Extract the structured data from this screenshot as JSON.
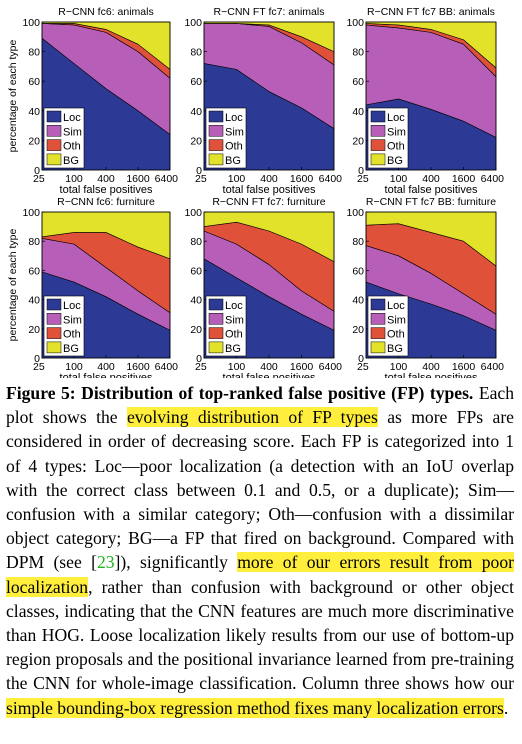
{
  "figure": {
    "ylabel": "percentage of each type",
    "xlabel": "total false positives",
    "x_ticks": [
      "25",
      "100",
      "400",
      "1600",
      "6400"
    ],
    "y_ticks": [
      "0",
      "20",
      "40",
      "60",
      "80",
      "100"
    ],
    "legend": [
      "Loc",
      "Sim",
      "Oth",
      "BG"
    ],
    "colors": {
      "Loc": "#2c3a96",
      "Sim": "#b75fb8",
      "Oth": "#e0513a",
      "BG": "#e2e22a"
    }
  },
  "chart_data": [
    {
      "type": "area",
      "title": "R−CNN fc6: animals",
      "xlabel": "total false positives",
      "ylabel": "percentage of each type",
      "x": [
        25,
        100,
        400,
        1600,
        6400
      ],
      "xscale": "log",
      "ylim": [
        0,
        100
      ],
      "legend_position": "bottom-left",
      "series": [
        {
          "name": "Loc",
          "values": [
            89,
            72,
            55,
            40,
            24
          ]
        },
        {
          "name": "Sim",
          "values": [
            10,
            26,
            38,
            40,
            38
          ]
        },
        {
          "name": "Oth",
          "values": [
            0,
            1,
            2,
            5,
            6
          ]
        },
        {
          "name": "BG",
          "values": [
            1,
            1,
            5,
            15,
            32
          ]
        }
      ]
    },
    {
      "type": "area",
      "title": "R−CNN FT fc7: animals",
      "xlabel": "total false positives",
      "x": [
        25,
        100,
        400,
        1600,
        6400
      ],
      "xscale": "log",
      "ylim": [
        0,
        100
      ],
      "legend_position": "bottom-left",
      "series": [
        {
          "name": "Loc",
          "values": [
            72,
            68,
            53,
            42,
            28
          ]
        },
        {
          "name": "Sim",
          "values": [
            27,
            31,
            44,
            44,
            43
          ]
        },
        {
          "name": "Oth",
          "values": [
            0,
            0,
            1,
            4,
            9
          ]
        },
        {
          "name": "BG",
          "values": [
            1,
            1,
            2,
            10,
            20
          ]
        }
      ]
    },
    {
      "type": "area",
      "title": "R−CNN FT fc7 BB: animals",
      "xlabel": "total false positives",
      "x": [
        25,
        100,
        400,
        1600,
        6400
      ],
      "xscale": "log",
      "ylim": [
        0,
        100
      ],
      "legend_position": "bottom-left",
      "series": [
        {
          "name": "Loc",
          "values": [
            44,
            48,
            41,
            33,
            22
          ]
        },
        {
          "name": "Sim",
          "values": [
            54,
            48,
            52,
            52,
            41
          ]
        },
        {
          "name": "Oth",
          "values": [
            1,
            2,
            2,
            3,
            6
          ]
        },
        {
          "name": "BG",
          "values": [
            1,
            2,
            5,
            12,
            31
          ]
        }
      ]
    },
    {
      "type": "area",
      "title": "R−CNN fc6: furniture",
      "xlabel": "total false positives",
      "ylabel": "percentage of each type",
      "x": [
        25,
        100,
        400,
        1600,
        6400
      ],
      "xscale": "log",
      "ylim": [
        0,
        100
      ],
      "legend_position": "bottom-left",
      "series": [
        {
          "name": "Loc",
          "values": [
            59,
            52,
            42,
            30,
            19
          ]
        },
        {
          "name": "Sim",
          "values": [
            23,
            26,
            20,
            16,
            12
          ]
        },
        {
          "name": "Oth",
          "values": [
            1,
            8,
            24,
            30,
            37
          ]
        },
        {
          "name": "BG",
          "values": [
            17,
            14,
            14,
            24,
            32
          ]
        }
      ]
    },
    {
      "type": "area",
      "title": "R−CNN FT fc7: furniture",
      "xlabel": "total false positives",
      "x": [
        25,
        100,
        400,
        1600,
        6400
      ],
      "xscale": "log",
      "ylim": [
        0,
        100
      ],
      "legend_position": "bottom-left",
      "series": [
        {
          "name": "Loc",
          "values": [
            68,
            55,
            42,
            30,
            19
          ]
        },
        {
          "name": "Sim",
          "values": [
            19,
            23,
            22,
            16,
            13
          ]
        },
        {
          "name": "Oth",
          "values": [
            3,
            15,
            23,
            32,
            34
          ]
        },
        {
          "name": "BG",
          "values": [
            10,
            7,
            13,
            22,
            34
          ]
        }
      ]
    },
    {
      "type": "area",
      "title": "R−CNN FT fc7 BB: furniture",
      "xlabel": "total false positives",
      "x": [
        25,
        100,
        400,
        1600,
        6400
      ],
      "xscale": "log",
      "ylim": [
        0,
        100
      ],
      "legend_position": "bottom-left",
      "series": [
        {
          "name": "Loc",
          "values": [
            52,
            44,
            37,
            29,
            19
          ]
        },
        {
          "name": "Sim",
          "values": [
            25,
            26,
            21,
            15,
            11
          ]
        },
        {
          "name": "Oth",
          "values": [
            14,
            22,
            28,
            36,
            33
          ]
        },
        {
          "name": "BG",
          "values": [
            9,
            8,
            14,
            20,
            37
          ]
        }
      ]
    }
  ],
  "caption": {
    "label": "Figure 5:",
    "title": " Distribution of top-ranked false positive (FP) types.",
    "t1": " Each plot shows the ",
    "h1": "evolving distribution of FP types",
    "t2": " as more FPs are considered in order of decreasing score. Each FP is categorized into 1 of 4 types: Loc—poor localization (a detection with an IoU overlap with the correct class between 0.1 and 0.5, or a duplicate); Sim—confusion with a similar category; Oth—confusion with a dissimilar object category; BG—a FP that fired on background. Compared with DPM (see [",
    "cite": "23",
    "t3": "]), significantly ",
    "h2": "more of our errors result from poor localization",
    "t4": ", rather than confusion with background or other object classes, indicating that the CNN features are much more discriminative than HOG. Loose localization likely results from our use of bottom-up region proposals and the positional invariance learned from pre-training the CNN for whole-image classification. Column three shows how our ",
    "h3": "simple bounding-box regression method fixes many localization errors",
    "t5": "."
  }
}
